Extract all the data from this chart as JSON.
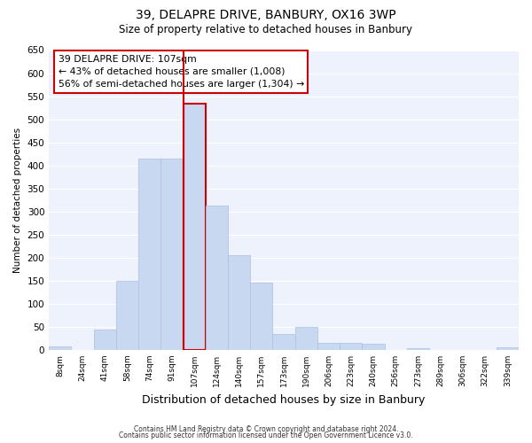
{
  "title": "39, DELAPRE DRIVE, BANBURY, OX16 3WP",
  "subtitle": "Size of property relative to detached houses in Banbury",
  "xlabel": "Distribution of detached houses by size in Banbury",
  "ylabel": "Number of detached properties",
  "categories": [
    "8sqm",
    "24sqm",
    "41sqm",
    "58sqm",
    "74sqm",
    "91sqm",
    "107sqm",
    "124sqm",
    "140sqm",
    "157sqm",
    "173sqm",
    "190sqm",
    "206sqm",
    "223sqm",
    "240sqm",
    "256sqm",
    "273sqm",
    "289sqm",
    "306sqm",
    "322sqm",
    "339sqm"
  ],
  "values": [
    8,
    0,
    45,
    150,
    415,
    415,
    533,
    313,
    205,
    145,
    35,
    50,
    15,
    15,
    13,
    0,
    3,
    0,
    0,
    0,
    5
  ],
  "highlight_index": 6,
  "bar_color": "#c8d8f0",
  "bar_edge_color": "#a8c0e0",
  "highlight_edge_color": "#cc0000",
  "vline_color": "#cc0000",
  "annotation_title": "39 DELAPRE DRIVE: 107sqm",
  "annotation_line1": "← 43% of detached houses are smaller (1,008)",
  "annotation_line2": "56% of semi-detached houses are larger (1,304) →",
  "box_color": "#ffffff",
  "box_edge_color": "#cc0000",
  "ylim": [
    0,
    650
  ],
  "yticks": [
    0,
    50,
    100,
    150,
    200,
    250,
    300,
    350,
    400,
    450,
    500,
    550,
    600,
    650
  ],
  "footer_line1": "Contains HM Land Registry data © Crown copyright and database right 2024.",
  "footer_line2": "Contains public sector information licensed under the Open Government Licence v3.0.",
  "background_color": "#ffffff",
  "plot_bg_color": "#eef2fc"
}
